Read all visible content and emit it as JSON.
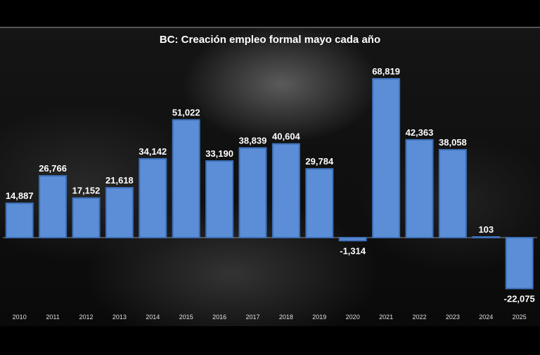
{
  "chart_data": {
    "type": "bar",
    "title": "BC: Creación empleo formal mayo cada año",
    "categories": [
      "2010",
      "2011",
      "2012",
      "2013",
      "2014",
      "2015",
      "2016",
      "2017",
      "2018",
      "2019",
      "2020",
      "2021",
      "2022",
      "2023",
      "2024",
      "2025"
    ],
    "values": [
      14887,
      26766,
      17152,
      21618,
      34142,
      51022,
      33190,
      38839,
      40604,
      29784,
      -1314,
      68819,
      42363,
      38058,
      103,
      -22075
    ],
    "data_labels": [
      "14,887",
      "26,766",
      "17,152",
      "21,618",
      "34,142",
      "51,022",
      "33,190",
      "38,839",
      "40,604",
      "29,784",
      "-1,314",
      "68,819",
      "42,363",
      "38,058",
      "103",
      "-22,075"
    ],
    "xlabel": "",
    "ylabel": "",
    "grid": false,
    "legend": "none",
    "colors": {
      "bar": "#5b8ed6",
      "bar_edge": "#3d6fb8",
      "text": "#ffffff"
    }
  }
}
